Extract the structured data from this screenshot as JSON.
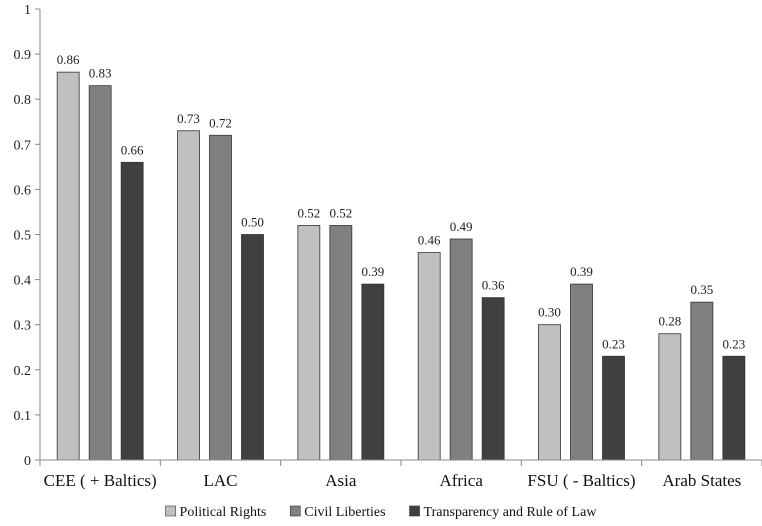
{
  "chart_data": {
    "type": "bar",
    "title": "",
    "xlabel": "",
    "ylabel": "",
    "ylim": [
      0,
      1
    ],
    "yticks": [
      "0",
      "0.1",
      "0.2",
      "0.3",
      "0.4",
      "0.5",
      "0.6",
      "0.7",
      "0.8",
      "0.9",
      "1"
    ],
    "grid": false,
    "legend_position": "bottom",
    "categories": [
      "CEE ( + Baltics)",
      "LAC",
      "Asia",
      "Africa",
      "FSU ( - Baltics)",
      "Arab States"
    ],
    "series": [
      {
        "name": "Political Rights",
        "color": "#c0c0c0",
        "values": [
          0.86,
          0.73,
          0.52,
          0.46,
          0.3,
          0.28
        ],
        "labels": [
          "0.86",
          "0.73",
          "0.52",
          "0.46",
          "0.30",
          "0.28"
        ]
      },
      {
        "name": "Civil Liberties",
        "color": "#808080",
        "values": [
          0.83,
          0.72,
          0.52,
          0.49,
          0.39,
          0.35
        ],
        "labels": [
          "0.83",
          "0.72",
          "0.52",
          "0.49",
          "0.39",
          "0.35"
        ]
      },
      {
        "name": "Transparency and Rule of Law",
        "color": "#404040",
        "values": [
          0.66,
          0.5,
          0.39,
          0.36,
          0.23,
          0.23
        ],
        "labels": [
          "0.66",
          "0.50",
          "0.39",
          "0.36",
          "0.23",
          "0.23"
        ]
      }
    ]
  }
}
